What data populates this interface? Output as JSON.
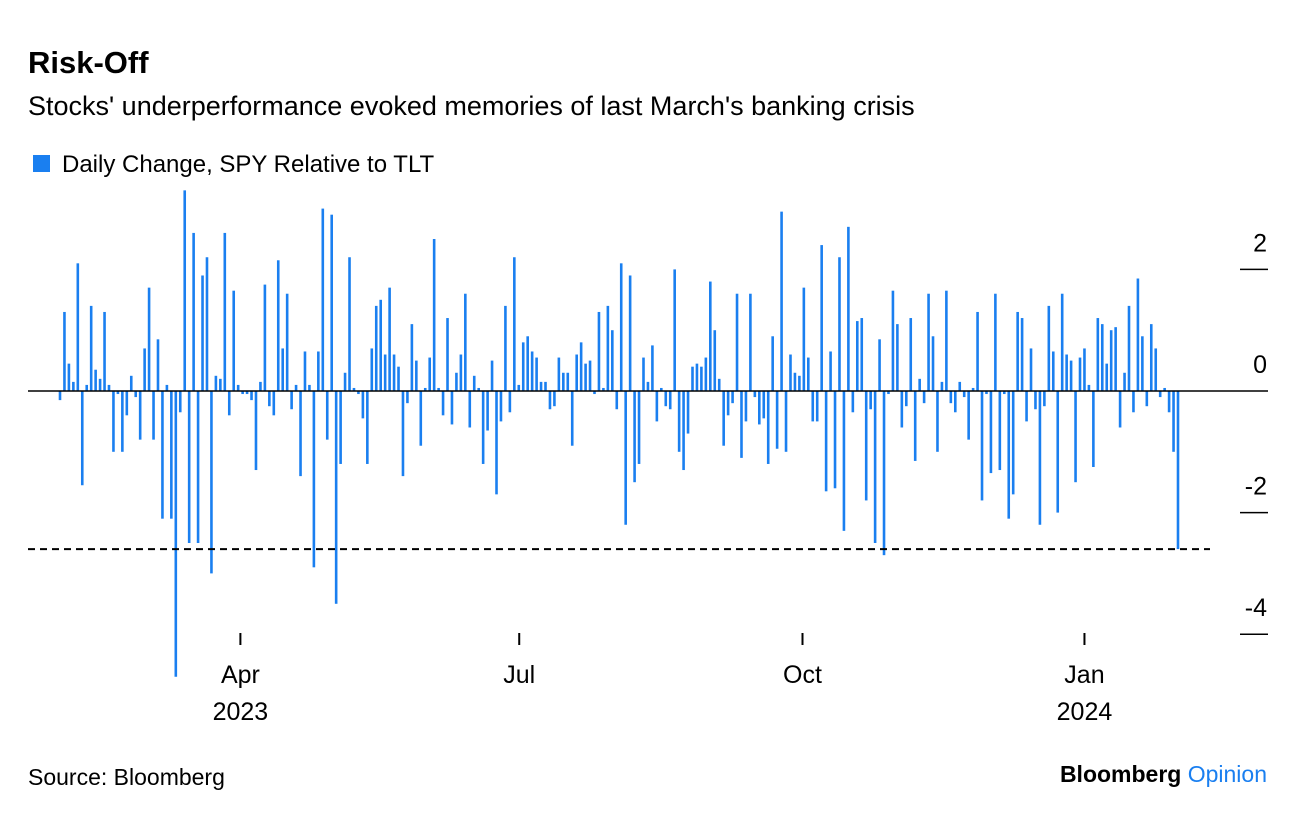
{
  "chart_data": {
    "type": "bar",
    "title": "Risk-Off",
    "subtitle": "Stocks' underperformance evoked memories of last March's banking crisis",
    "source": "Source: Bloomberg",
    "brand": "Bloomberg",
    "brand_suffix": "Opinion",
    "series": [
      {
        "name": "Daily Change, SPY Relative to TLT",
        "color": "#1a7ff0",
        "values": [
          -0.15,
          1.3,
          0.45,
          0.15,
          2.1,
          -1.55,
          0.1,
          1.4,
          0.35,
          0.2,
          1.3,
          0.1,
          -1.0,
          -0.05,
          -1.0,
          -0.4,
          0.25,
          -0.1,
          -0.8,
          0.7,
          1.7,
          -0.8,
          0.85,
          -2.1,
          0.1,
          -2.1,
          -4.7,
          -0.35,
          3.3,
          -2.5,
          2.6,
          -2.5,
          1.9,
          2.2,
          -3.0,
          0.25,
          0.2,
          2.6,
          -0.4,
          1.65,
          0.1,
          -0.05,
          -0.05,
          -0.15,
          -1.3,
          0.15,
          1.75,
          -0.25,
          -0.4,
          2.15,
          0.7,
          1.6,
          -0.3,
          0.1,
          -1.4,
          0.65,
          0.1,
          -2.9,
          0.65,
          3.0,
          -0.8,
          2.9,
          -3.5,
          -1.2,
          0.3,
          2.2,
          0.05,
          -0.05,
          -0.45,
          -1.2,
          0.7,
          1.4,
          1.5,
          0.6,
          1.7,
          0.6,
          0.4,
          -1.4,
          -0.2,
          1.1,
          0.5,
          -0.9,
          0.05,
          0.55,
          2.5,
          0.05,
          -0.4,
          1.2,
          -0.55,
          0.3,
          0.6,
          1.6,
          -0.6,
          0.25,
          0.05,
          -1.2,
          -0.65,
          0.5,
          -1.7,
          -0.5,
          1.4,
          -0.35,
          2.2,
          0.1,
          0.8,
          0.9,
          0.65,
          0.55,
          0.15,
          0.15,
          -0.3,
          -0.25,
          0.55,
          0.3,
          0.3,
          -0.9,
          0.6,
          0.8,
          0.45,
          0.5,
          -0.05,
          1.3,
          0.05,
          1.4,
          1.0,
          -0.3,
          2.1,
          -2.2,
          1.9,
          -1.5,
          -1.2,
          0.55,
          0.15,
          0.75,
          -0.5,
          0.05,
          -0.25,
          -0.3,
          2.0,
          -1.0,
          -1.3,
          -0.7,
          0.4,
          0.45,
          0.4,
          0.55,
          1.8,
          1.0,
          0.2,
          -0.9,
          -0.4,
          -0.2,
          1.6,
          -1.1,
          -0.5,
          1.6,
          -0.1,
          -0.55,
          -0.45,
          -1.2,
          0.9,
          -0.95,
          2.95,
          -1.0,
          0.6,
          0.3,
          0.25,
          1.7,
          0.55,
          -0.5,
          -0.5,
          2.4,
          -1.65,
          0.65,
          -1.6,
          2.2,
          -2.3,
          2.7,
          -0.35,
          1.15,
          1.2,
          -1.8,
          -0.3,
          -2.5,
          0.85,
          -2.7,
          -0.05,
          1.65,
          1.1,
          -0.6,
          -0.25,
          1.2,
          -1.15,
          0.2,
          -0.2,
          1.6,
          0.9,
          -1.0,
          0.15,
          1.65,
          -0.2,
          -0.35,
          0.15,
          -0.1,
          -0.8,
          0.05,
          1.3,
          -1.8,
          -0.05,
          -1.35,
          1.6,
          -1.3,
          -0.05,
          -2.1,
          -1.7,
          1.3,
          1.2,
          -0.5,
          0.7,
          -0.3,
          -2.2,
          -0.25,
          1.4,
          0.65,
          -2.0,
          1.6,
          0.6,
          0.5,
          -1.5,
          0.55,
          0.7,
          0.1,
          -1.25,
          1.2,
          1.1,
          0.45,
          1.0,
          1.05,
          -0.6,
          0.3,
          1.4,
          -0.35,
          1.85,
          0.9,
          -0.25,
          1.1,
          0.7,
          -0.1,
          0.05,
          -0.35,
          -1.0,
          -2.6
        ]
      }
    ],
    "xticks": [
      {
        "value": 40.5,
        "label": "Apr\n2023"
      },
      {
        "value": 103.1,
        "label": "Jul"
      },
      {
        "value": 166.7,
        "label": "Oct"
      },
      {
        "value": 230,
        "label": "Jan\n2024"
      }
    ],
    "ylim": [
      -4.8,
      3.4
    ],
    "yticks": [
      -4,
      -2,
      0,
      2
    ],
    "hline": -2.6,
    "legend": "top-left"
  }
}
